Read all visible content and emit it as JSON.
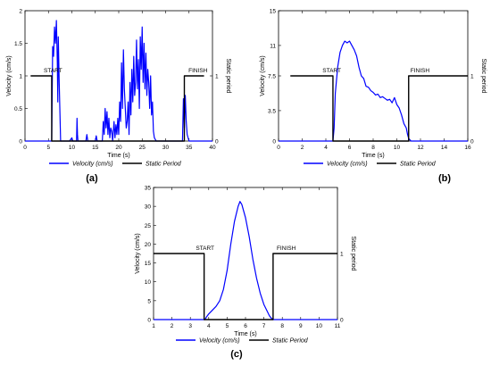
{
  "chart_data": [
    {
      "type": "line",
      "panel_label": "(a)",
      "xlabel": "Time (s)",
      "ylabel": "Velocity (cm/s)",
      "ylabel_right": "Static period",
      "xlim": [
        0,
        40
      ],
      "ylim": [
        0,
        2
      ],
      "xticks": [
        0,
        5,
        10,
        15,
        20,
        25,
        30,
        35,
        40
      ],
      "yticks": [
        0,
        0.5,
        1,
        1.5,
        2
      ],
      "yticks_right": [
        0,
        1
      ],
      "annotations": [
        "START",
        "FINISH"
      ],
      "legend": [
        "Velocity (cm/s)",
        "Static Period"
      ],
      "series": [
        {
          "name": "Velocity (cm/s)",
          "color": "#0000ff",
          "x": [
            0,
            5.7,
            5.9,
            6.1,
            6.3,
            6.5,
            6.7,
            6.9,
            7.0,
            7.1,
            7.3,
            7.5,
            7.6,
            8,
            9.5,
            10.0,
            10.2,
            11,
            11.1,
            11.2,
            11.3,
            13,
            13.2,
            13.4,
            15,
            15.2,
            15.4,
            16.5,
            16.7,
            16.9,
            17.1,
            17.3,
            17.5,
            17.7,
            17.9,
            18.1,
            18.3,
            18.5,
            18.7,
            19,
            19.2,
            19.4,
            19.6,
            19.8,
            20,
            20.2,
            20.4,
            20.6,
            20.8,
            21,
            21.2,
            21.4,
            21.6,
            21.8,
            22,
            22.2,
            22.4,
            22.6,
            22.8,
            23,
            23.2,
            23.4,
            23.6,
            23.8,
            24,
            24.2,
            24.4,
            24.6,
            24.8,
            25,
            25.2,
            25.4,
            25.6,
            25.8,
            26,
            26.2,
            26.4,
            26.6,
            26.8,
            27,
            27.2,
            27.4,
            27.6,
            28,
            33.6,
            33.8,
            34.0,
            34.2,
            34.4,
            34.6,
            35,
            40
          ],
          "y": [
            0,
            0,
            1.45,
            1.3,
            1.75,
            1.5,
            1.85,
            1.2,
            0.6,
            1.6,
            0.9,
            0.3,
            0,
            0,
            0,
            0.05,
            0,
            0,
            0.35,
            0.1,
            0,
            0,
            0.1,
            0,
            0,
            0.08,
            0,
            0,
            0.3,
            0.1,
            0.5,
            0.2,
            0.45,
            0.1,
            0.35,
            0.05,
            0.2,
            0.15,
            0,
            0.3,
            0.05,
            0.25,
            0.1,
            0.35,
            0.1,
            0.6,
            0.3,
            1.2,
            0.5,
            1.4,
            0.8,
            0.5,
            0.2,
            0.3,
            0.6,
            0.1,
            0.9,
            0.4,
            1.1,
            0.6,
            1.3,
            0.7,
            0.9,
            1.55,
            0.8,
            1.25,
            0.5,
            1.6,
            1.1,
            1.75,
            0.9,
            1.5,
            0.8,
            1.35,
            0.7,
            1.1,
            0.9,
            0.5,
            1.0,
            0.4,
            0.6,
            0.15,
            0.05,
            0,
            0,
            0.65,
            0.2,
            0.7,
            0.3,
            0.1,
            0,
            0
          ]
        },
        {
          "name": "Static Period",
          "color": "#000000",
          "axis": "right",
          "x": [
            1.2,
            5.7,
            5.7,
            34.0,
            34.0,
            38.2
          ],
          "y": [
            1,
            1,
            0,
            0,
            1,
            1
          ]
        }
      ]
    },
    {
      "type": "line",
      "panel_label": "(b)",
      "xlabel": "Time (s)",
      "ylabel": "Velocity (cm/s)",
      "ylabel_right": "Static period",
      "xlim": [
        0,
        16
      ],
      "ylim": [
        0,
        15
      ],
      "xticks": [
        0,
        2,
        4,
        6,
        8,
        10,
        12,
        14,
        16
      ],
      "yticks": [
        0,
        3.5,
        7.5,
        11,
        15
      ],
      "yticks_right": [
        0,
        1
      ],
      "annotations": [
        "START",
        "FINISH"
      ],
      "legend": [
        "Velocity (cm/s)",
        "Static Period"
      ],
      "series": [
        {
          "name": "Velocity (cm/s)",
          "color": "#0000ff",
          "x": [
            0,
            4.6,
            4.7,
            4.8,
            5.0,
            5.2,
            5.4,
            5.6,
            5.8,
            6.0,
            6.2,
            6.4,
            6.6,
            6.8,
            7.0,
            7.2,
            7.4,
            7.6,
            7.8,
            8.0,
            8.2,
            8.4,
            8.6,
            8.8,
            9.0,
            9.2,
            9.4,
            9.6,
            9.8,
            10.0,
            10.2,
            10.4,
            10.6,
            10.8,
            10.9,
            11.0,
            11.2,
            12,
            16
          ],
          "y": [
            0,
            0,
            1.5,
            5.5,
            8.5,
            10.2,
            11.0,
            11.5,
            11.3,
            11.5,
            11.0,
            10.5,
            9.8,
            8.5,
            7.5,
            7.2,
            6.3,
            6.2,
            5.8,
            5.6,
            5.3,
            5.4,
            5.0,
            5.1,
            4.9,
            4.7,
            4.8,
            4.4,
            5.0,
            4.2,
            3.8,
            3.0,
            2.0,
            1.5,
            0.8,
            0.3,
            0,
            0,
            0
          ]
        },
        {
          "name": "Static Period",
          "color": "#000000",
          "axis": "right",
          "x": [
            1.0,
            4.6,
            4.6,
            11.0,
            11.0,
            16
          ],
          "y": [
            1,
            1,
            0,
            0,
            1,
            1
          ]
        }
      ]
    },
    {
      "type": "line",
      "panel_label": "(c)",
      "xlabel": "Time (s)",
      "ylabel": "Velocity (cm/s)",
      "ylabel_right": "Static period",
      "xlim": [
        1,
        11
      ],
      "ylim": [
        0,
        35
      ],
      "xticks": [
        1,
        2,
        3,
        4,
        5,
        6,
        7,
        8,
        9,
        10,
        11
      ],
      "yticks": [
        0,
        5,
        10,
        15,
        20,
        25,
        30,
        35
      ],
      "yticks_right": [
        0,
        1
      ],
      "annotations": [
        "START",
        "FINISH"
      ],
      "legend": [
        "Velocity (cm/s)",
        "Static Period"
      ],
      "series": [
        {
          "name": "Velocity (cm/s)",
          "color": "#0000ff",
          "x": [
            1,
            3.8,
            3.85,
            4.0,
            4.2,
            4.4,
            4.6,
            4.8,
            5.0,
            5.2,
            5.4,
            5.6,
            5.7,
            5.8,
            6.0,
            6.2,
            6.4,
            6.6,
            6.8,
            7.0,
            7.2,
            7.3,
            7.4,
            7.5,
            7.6,
            8,
            11
          ],
          "y": [
            0,
            0,
            0.5,
            1.5,
            2.5,
            3.5,
            5.0,
            8.0,
            13.0,
            20.0,
            26.0,
            30.0,
            31.3,
            30.5,
            27.0,
            22.0,
            16.0,
            11.0,
            7.0,
            4.0,
            2.0,
            1.0,
            0.4,
            0,
            0,
            0,
            0
          ]
        },
        {
          "name": "Static Period",
          "color": "#000000",
          "axis": "right",
          "x": [
            1,
            3.75,
            3.75,
            7.5,
            7.5,
            11
          ],
          "y": [
            1,
            1,
            0,
            0,
            1,
            1
          ]
        }
      ]
    }
  ]
}
